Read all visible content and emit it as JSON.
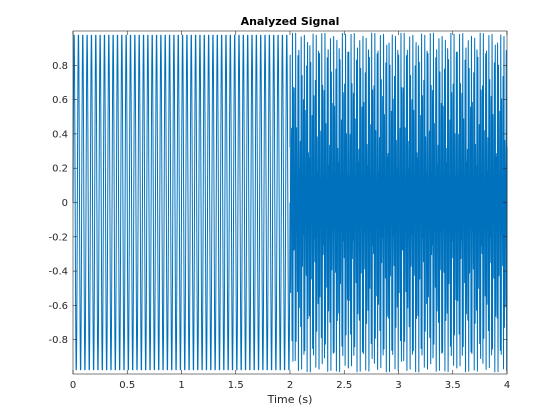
{
  "chart_data": {
    "type": "line",
    "title": "Analyzed Signal",
    "xlabel": "Time (s)",
    "ylabel": "",
    "xlim": [
      0,
      4
    ],
    "ylim": [
      -1,
      1
    ],
    "grid": false,
    "x_ticks": [
      0,
      0.5,
      1,
      1.5,
      2,
      2.5,
      3,
      3.5,
      4
    ],
    "x_tick_labels": [
      "0",
      "0.5",
      "1",
      "1.5",
      "2",
      "2.5",
      "3",
      "3.5",
      "4"
    ],
    "y_ticks": [
      -0.8,
      -0.6,
      -0.4,
      -0.2,
      0,
      0.2,
      0.4,
      0.6,
      0.8
    ],
    "y_tick_labels": [
      "-0.8",
      "-0.6",
      "-0.4",
      "-0.2",
      "0",
      "0.2",
      "0.4",
      "0.6",
      "0.8"
    ],
    "series": [
      {
        "color": "#0072BD",
        "segments": [
          {
            "x_start": 0,
            "x_end": 2,
            "waveform": "sine",
            "frequency_hz": 25,
            "amplitude": 1
          },
          {
            "x_start": 2,
            "x_end": 4,
            "waveform": "sine-sum",
            "frequency_hz": 100,
            "amplitude": 1
          }
        ]
      }
    ]
  }
}
